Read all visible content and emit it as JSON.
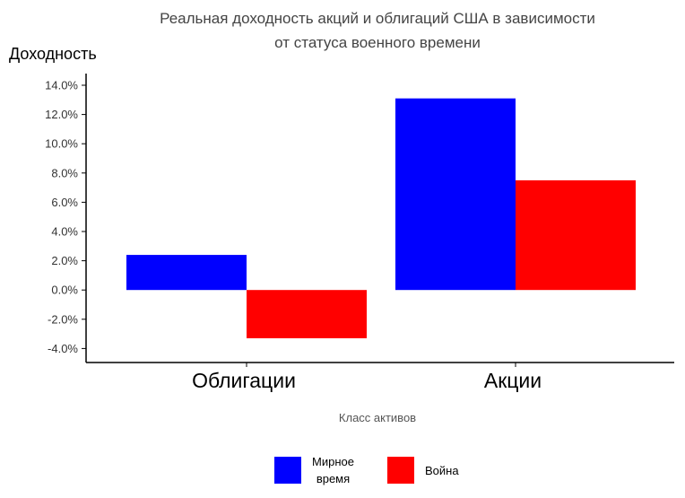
{
  "chart_data": {
    "type": "bar",
    "title_line1": "Реальная доходность акций и облигаций США в зависимости",
    "title_line2": "от статуса военного времени",
    "ylabel": "Доходность",
    "xlabel": "Класс активов",
    "categories": [
      "Облигации",
      "Акции"
    ],
    "series": [
      {
        "name": "Мирное время",
        "values": [
          2.4,
          13.1
        ],
        "color": "#0000ff"
      },
      {
        "name": "Война",
        "values": [
          -3.3,
          7.5
        ],
        "color": "#ff0000"
      }
    ],
    "ylim": [
      -5.0,
      14.5
    ],
    "yticks": [
      "14.0%",
      "12.0%",
      "10.0%",
      "8.0%",
      "6.0%",
      "4.0%",
      "2.0%",
      "0.0%",
      "-2.0%",
      "-4.0%"
    ],
    "ytick_values": [
      14,
      12,
      10,
      8,
      6,
      4,
      2,
      0,
      -2,
      -4
    ],
    "grid": false,
    "legend_position": "bottom"
  },
  "legend": {
    "peace_line1": "Мирное",
    "peace_line2": "время",
    "war": "Война"
  }
}
